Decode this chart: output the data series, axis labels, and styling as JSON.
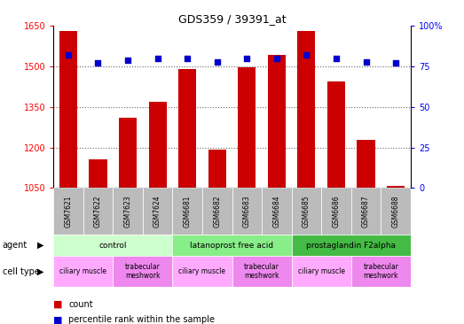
{
  "title": "GDS359 / 39391_at",
  "samples": [
    "GSM7621",
    "GSM7622",
    "GSM7623",
    "GSM7624",
    "GSM6681",
    "GSM6682",
    "GSM6683",
    "GSM6684",
    "GSM6685",
    "GSM6686",
    "GSM6687",
    "GSM6688"
  ],
  "counts": [
    1630,
    1155,
    1310,
    1368,
    1490,
    1192,
    1497,
    1543,
    1632,
    1445,
    1228,
    1057
  ],
  "percentiles": [
    82,
    77,
    79,
    80,
    80,
    78,
    80,
    80,
    82,
    80,
    78,
    77
  ],
  "ymin": 1050,
  "ymax": 1650,
  "yticks": [
    1050,
    1200,
    1350,
    1500,
    1650
  ],
  "y2min": 0,
  "y2max": 100,
  "y2ticks": [
    0,
    25,
    50,
    75,
    100
  ],
  "bar_color": "#cc0000",
  "dot_color": "#0000cc",
  "grid_lines": [
    1200,
    1350,
    1500
  ],
  "agent_groups": [
    {
      "label": "control",
      "start": 0,
      "end": 3,
      "color": "#ccffcc"
    },
    {
      "label": "latanoprost free acid",
      "start": 4,
      "end": 7,
      "color": "#88ee88"
    },
    {
      "label": "prostaglandin F2alpha",
      "start": 8,
      "end": 11,
      "color": "#44bb44"
    }
  ],
  "cell_type_groups": [
    {
      "label": "ciliary muscle",
      "start": 0,
      "end": 1,
      "color": "#ffaaff"
    },
    {
      "label": "trabecular\nmeshwork",
      "start": 2,
      "end": 3,
      "color": "#ee88ee"
    },
    {
      "label": "ciliary muscle",
      "start": 4,
      "end": 5,
      "color": "#ffaaff"
    },
    {
      "label": "trabecular\nmeshwork",
      "start": 6,
      "end": 7,
      "color": "#ee88ee"
    },
    {
      "label": "ciliary muscle",
      "start": 8,
      "end": 9,
      "color": "#ffaaff"
    },
    {
      "label": "trabecular\nmeshwork",
      "start": 10,
      "end": 11,
      "color": "#ee88ee"
    }
  ],
  "bar_width": 0.6,
  "sample_bg_color": "#bbbbbb"
}
